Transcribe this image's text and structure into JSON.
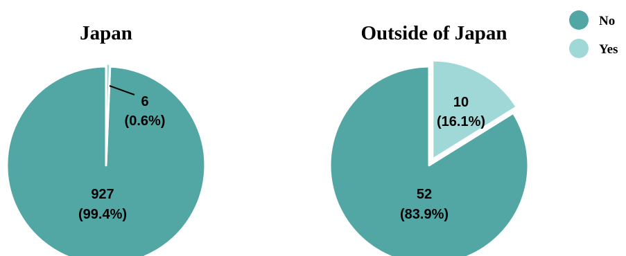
{
  "colors": {
    "no": "#52a7a5",
    "yes": "#9fd8d6",
    "background": "#ffffff"
  },
  "legend": {
    "items": [
      {
        "label": "No",
        "color": "#52a7a5"
      },
      {
        "label": "Yes",
        "color": "#9fd8d6"
      }
    ]
  },
  "chart_data": [
    {
      "type": "pie",
      "title": "Japan",
      "slices": [
        {
          "category": "No",
          "value": 927,
          "label_value": "927",
          "label_percent": "(99.4%)"
        },
        {
          "category": "Yes",
          "value": 6,
          "label_value": "6",
          "label_percent": "(0.6%)"
        }
      ],
      "exploded": "Yes",
      "legend_placement": "top-right"
    },
    {
      "type": "pie",
      "title": "Outside of Japan",
      "slices": [
        {
          "category": "No",
          "value": 52,
          "label_value": "52",
          "label_percent": "(83.9%)"
        },
        {
          "category": "Yes",
          "value": 10,
          "label_value": "10",
          "label_percent": "(16.1%)"
        }
      ],
      "exploded": "Yes",
      "legend_placement": "top-right"
    }
  ]
}
